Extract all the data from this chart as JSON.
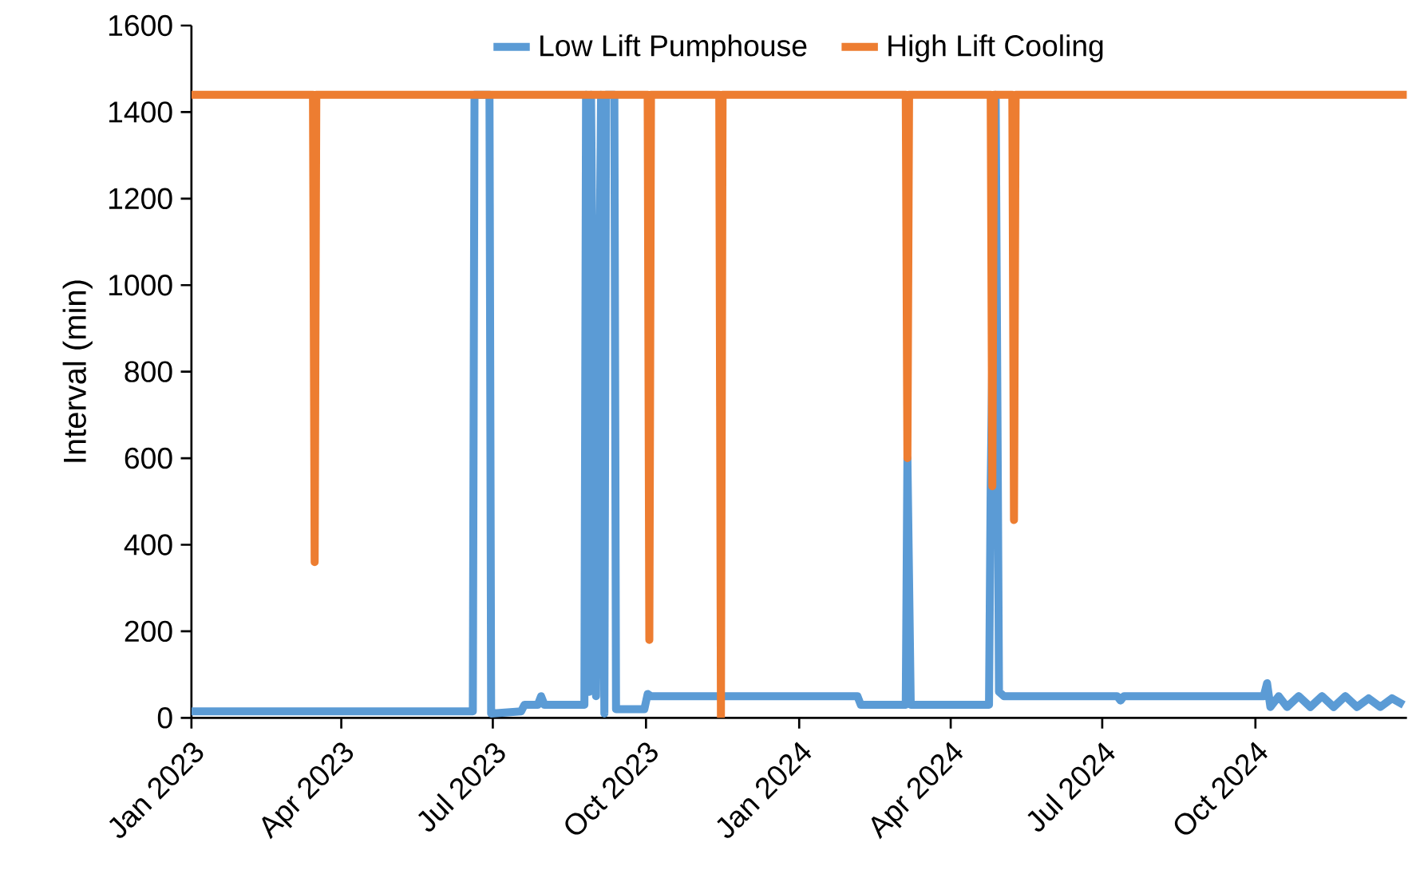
{
  "chart_data": {
    "type": "line",
    "ylabel": "Interval (min)",
    "xlim": [
      "2023-01-01",
      "2024-12-31"
    ],
    "xticks": [
      {
        "value": "2023-01-01",
        "label": "Jan 2023"
      },
      {
        "value": "2023-04-01",
        "label": "Apr 2023"
      },
      {
        "value": "2023-07-01",
        "label": "Jul 2023"
      },
      {
        "value": "2023-10-01",
        "label": "Oct 2023"
      },
      {
        "value": "2024-01-01",
        "label": "Jan 2024"
      },
      {
        "value": "2024-04-01",
        "label": "Apr 2024"
      },
      {
        "value": "2024-07-01",
        "label": "Jul 2024"
      },
      {
        "value": "2024-10-01",
        "label": "Oct 2024"
      }
    ],
    "ylim": [
      0,
      1600
    ],
    "yticks": [
      0,
      200,
      400,
      600,
      800,
      1000,
      1200,
      1400,
      1600
    ],
    "legend": "top",
    "grid": false,
    "marker": "none",
    "line_style": "solid",
    "series": [
      {
        "name": "Low Lift Pumphouse",
        "color": "#5b9bd5",
        "x": [
          "2023-01-01",
          "2023-03-01",
          "2023-06-19",
          "2023-06-20",
          "2023-06-29",
          "2023-06-30",
          "2023-07-18",
          "2023-07-20",
          "2023-07-28",
          "2023-07-30",
          "2023-08-01",
          "2023-08-25",
          "2023-08-26",
          "2023-08-28",
          "2023-08-29",
          "2023-09-01",
          "2023-09-04",
          "2023-09-06",
          "2023-09-07",
          "2023-09-12",
          "2023-09-13",
          "2023-09-30",
          "2023-10-02",
          "2023-10-04",
          "2024-02-05",
          "2024-02-07",
          "2024-03-05",
          "2024-03-06",
          "2024-03-08",
          "2024-04-24",
          "2024-04-25",
          "2024-04-28",
          "2024-04-30",
          "2024-05-03",
          "2024-07-10",
          "2024-07-12",
          "2024-07-14",
          "2024-10-06",
          "2024-10-08",
          "2024-10-10",
          "2024-10-15",
          "2024-10-20",
          "2024-10-27",
          "2024-11-03",
          "2024-11-10",
          "2024-11-17",
          "2024-11-24",
          "2024-12-01",
          "2024-12-08",
          "2024-12-15",
          "2024-12-22",
          "2024-12-29"
        ],
        "values": [
          15,
          15,
          15,
          1440,
          1440,
          10,
          15,
          30,
          30,
          50,
          30,
          30,
          1440,
          60,
          1440,
          50,
          1440,
          10,
          1440,
          1440,
          20,
          20,
          55,
          50,
          50,
          30,
          30,
          600,
          30,
          30,
          530,
          1440,
          60,
          50,
          50,
          40,
          50,
          50,
          80,
          25,
          50,
          25,
          50,
          25,
          50,
          25,
          50,
          25,
          45,
          25,
          45,
          30
        ]
      },
      {
        "name": "High Lift Cooling",
        "color": "#ed7d31",
        "x": [
          "2023-01-01",
          "2023-03-15",
          "2023-03-16",
          "2023-03-17",
          "2023-10-02",
          "2023-10-03",
          "2023-10-04",
          "2023-11-14",
          "2023-11-15",
          "2023-11-16",
          "2024-03-05",
          "2024-03-06",
          "2024-03-07",
          "2024-04-25",
          "2024-04-26",
          "2024-04-27",
          "2024-05-08",
          "2024-05-09",
          "2024-05-10",
          "2024-12-31"
        ],
        "values": [
          1440,
          1440,
          360,
          1440,
          1440,
          180,
          1440,
          1440,
          0,
          1440,
          1440,
          600,
          1440,
          1440,
          535,
          1440,
          1440,
          457,
          1440,
          1440
        ]
      }
    ]
  }
}
